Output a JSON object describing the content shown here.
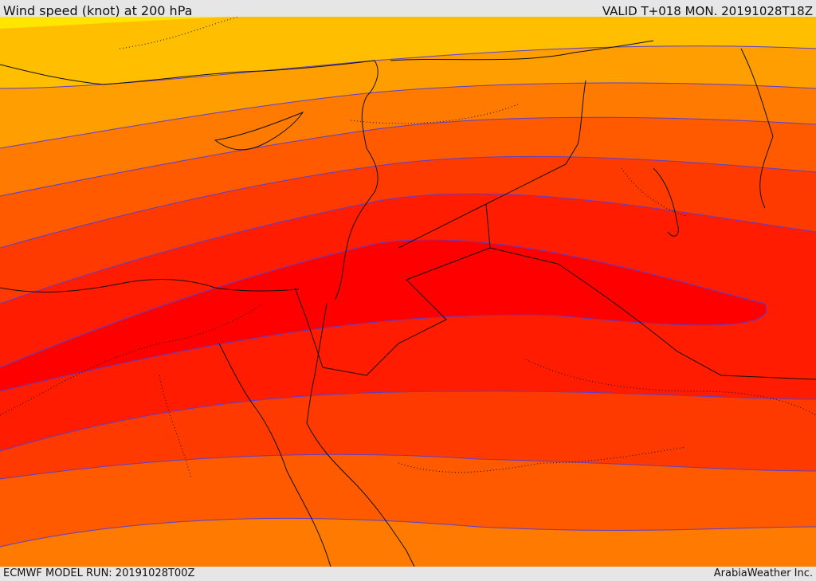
{
  "header": {
    "title": "Wind speed (knot) at 200 hPa",
    "valid": "VALID T+018 MON. 20191028T18Z"
  },
  "footer": {
    "model_run": "ECMWF MODEL RUN: 20191028T00Z",
    "credit": "ArabiaWeather Inc."
  },
  "map": {
    "colors": {
      "band0": "#ffe600",
      "band1": "#ffbe00",
      "band2": "#ff9e00",
      "band3": "#ff7a00",
      "band4": "#ff5a00",
      "band5": "#ff3a00",
      "band6": "#ff1c00",
      "band7": "#ff0000",
      "contour": "#5a3fd0",
      "coast": "#111111"
    },
    "layers": [
      "wind-speed-bands",
      "contour-lines",
      "coastlines",
      "country-borders"
    ]
  }
}
